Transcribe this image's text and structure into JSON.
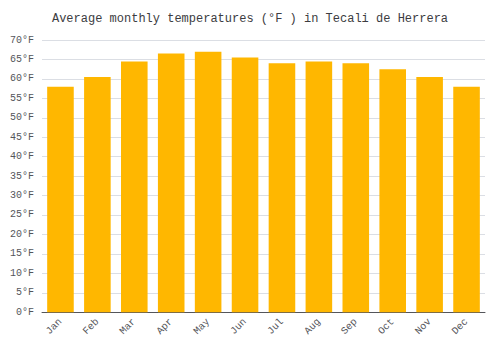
{
  "chart_data": {
    "type": "bar",
    "title": "Average monthly temperatures (°F ) in Tecali de Herrera",
    "categories": [
      "Jan",
      "Feb",
      "Mar",
      "Apr",
      "May",
      "Jun",
      "Jul",
      "Aug",
      "Sep",
      "Oct",
      "Nov",
      "Dec"
    ],
    "values": [
      58,
      60.5,
      64.5,
      66.5,
      67,
      65.5,
      64,
      64.5,
      64,
      62.5,
      60.5,
      58
    ],
    "color": "#FFB700",
    "ylim": [
      0,
      70
    ],
    "yticks": [
      {
        "value": 0,
        "label": "0°F"
      },
      {
        "value": 5,
        "label": "5°F"
      },
      {
        "value": 10,
        "label": "10°F"
      },
      {
        "value": 15,
        "label": "15°F"
      },
      {
        "value": 20,
        "label": "20°F"
      },
      {
        "value": 25,
        "label": "25°F"
      },
      {
        "value": 30,
        "label": "30°F"
      },
      {
        "value": 35,
        "label": "35°F"
      },
      {
        "value": 40,
        "label": "40°F"
      },
      {
        "value": 45,
        "label": "45°F"
      },
      {
        "value": 50,
        "label": "50°F"
      },
      {
        "value": 55,
        "label": "55°F"
      },
      {
        "value": 60,
        "label": "60°F"
      },
      {
        "value": 65,
        "label": "65°F"
      },
      {
        "value": 70,
        "label": "70°F"
      }
    ],
    "grid": true
  }
}
